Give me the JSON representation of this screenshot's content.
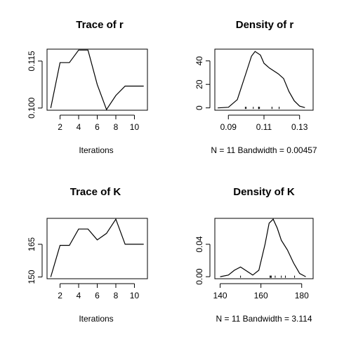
{
  "chart_data": [
    {
      "type": "line",
      "title": "Trace of r",
      "xlabel": "Iterations",
      "ylabel": "",
      "x": [
        1,
        2,
        3,
        4,
        5,
        6,
        7,
        8,
        9,
        10,
        11
      ],
      "series": [
        {
          "values": [
            0.1,
            0.1145,
            0.1145,
            0.1185,
            0.1185,
            0.1075,
            0.0995,
            0.104,
            0.107,
            0.107,
            0.107
          ]
        }
      ],
      "xlim": [
        0.6,
        11.4
      ],
      "ylim": [
        0.0993,
        0.1188
      ],
      "xticks": [
        2,
        4,
        6,
        8,
        10
      ],
      "yticks": [
        0.1,
        0.115
      ],
      "ytick_labels": [
        "0.100",
        "0.115"
      ],
      "grid": false
    },
    {
      "type": "line",
      "title": "Density of r",
      "xlabel": "N = 11   Bandwidth = 0.00457",
      "ylabel": "",
      "x": [
        0.084,
        0.09,
        0.095,
        0.1,
        0.103,
        0.105,
        0.108,
        0.11,
        0.113,
        0.115,
        0.118,
        0.121,
        0.124,
        0.127,
        0.13,
        0.133
      ],
      "series": [
        {
          "values": [
            0,
            0.5,
            7,
            30,
            44,
            48,
            45,
            38,
            34,
            32,
            29,
            25,
            14,
            6,
            1.5,
            0.2
          ]
        }
      ],
      "rug": [
        0.0995,
        0.1,
        0.104,
        0.107,
        0.107,
        0.107,
        0.1075,
        0.1145,
        0.1145,
        0.1185,
        0.1185
      ],
      "xlim": [
        0.0824,
        0.1376
      ],
      "ylim": [
        -2,
        50
      ],
      "xticks": [
        0.09,
        0.11,
        0.13
      ],
      "yticks": [
        0,
        20,
        40
      ],
      "grid": false
    },
    {
      "type": "line",
      "title": "Trace of K",
      "xlabel": "Iterations",
      "ylabel": "",
      "x": [
        1,
        2,
        3,
        4,
        5,
        6,
        7,
        8,
        9,
        10,
        11
      ],
      "series": [
        {
          "values": [
            150,
            164.5,
            164.5,
            172,
            172,
            167,
            170,
            176.5,
            165,
            165,
            165
          ]
        }
      ],
      "xlim": [
        0.6,
        11.4
      ],
      "ylim": [
        149.2,
        176.9
      ],
      "xticks": [
        2,
        4,
        6,
        8,
        10
      ],
      "yticks": [
        150,
        165
      ],
      "grid": false
    },
    {
      "type": "line",
      "title": "Density of K",
      "xlabel": "N = 11   Bandwidth = 3.114",
      "ylabel": "",
      "x": [
        140,
        144,
        147,
        150,
        153,
        156,
        159,
        162,
        164,
        166,
        168,
        170,
        173,
        176,
        179,
        182
      ],
      "series": [
        {
          "values": [
            0,
            0.002,
            0.008,
            0.012,
            0.007,
            0.002,
            0.008,
            0.04,
            0.066,
            0.071,
            0.06,
            0.045,
            0.033,
            0.017,
            0.004,
            0
          ]
        }
      ],
      "rug": [
        150,
        164.5,
        164.5,
        165,
        165,
        165,
        167,
        170,
        172,
        172,
        176.5
      ],
      "xlim": [
        137.4,
        185.6
      ],
      "ylim": [
        -0.0025,
        0.072
      ],
      "xticks": [
        140,
        160,
        180
      ],
      "yticks": [
        0,
        0.04
      ],
      "ytick_labels": [
        "0.00",
        "0.04"
      ],
      "grid": false
    }
  ]
}
